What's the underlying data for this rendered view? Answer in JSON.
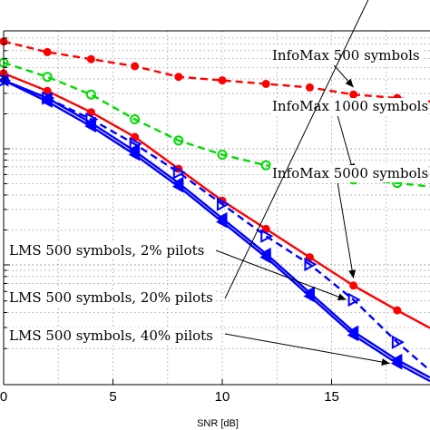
{
  "chart_data": {
    "type": "line",
    "xlabel": "SNR [dB]",
    "ylabel": "",
    "xlim": [
      0,
      19.5
    ],
    "grid": true,
    "x_ticks": [
      0,
      5,
      10,
      15
    ],
    "series": [
      {
        "name": "InfoMax 500 symbols",
        "color": "#ff0000",
        "dash": true,
        "marker": "dot",
        "x": [
          0,
          2,
          4,
          6,
          8,
          10,
          12,
          14,
          16,
          18,
          19.5
        ],
        "y": [
          0.92,
          0.89,
          0.87,
          0.85,
          0.82,
          0.81,
          0.8,
          0.79,
          0.77,
          0.76,
          0.75
        ]
      },
      {
        "name": "InfoMax 1000 symbols",
        "color": "#00dd00",
        "dash": true,
        "marker": "circle",
        "x": [
          0,
          2,
          4,
          6,
          8,
          10,
          12,
          14,
          16,
          18,
          19.5
        ],
        "y": [
          0.86,
          0.82,
          0.77,
          0.7,
          0.64,
          0.6,
          0.57,
          0.55,
          0.53,
          0.52,
          0.51
        ]
      },
      {
        "name": "InfoMax 5000 symbols",
        "color": "#ff0000",
        "dash": false,
        "marker": "dot",
        "x": [
          0,
          2,
          4,
          6,
          8,
          10,
          12,
          14,
          16,
          18,
          19.5
        ],
        "y": [
          0.83,
          0.78,
          0.72,
          0.65,
          0.56,
          0.47,
          0.39,
          0.31,
          0.23,
          0.16,
          0.11
        ]
      },
      {
        "name": "LMS 500 symbols, 2% pilots",
        "color": "#0000ff",
        "dash": true,
        "marker": "triangle-right",
        "x": [
          0,
          2,
          4,
          6,
          8,
          10,
          12,
          14,
          16,
          18,
          19.5
        ],
        "y": [
          0.81,
          0.76,
          0.7,
          0.63,
          0.55,
          0.46,
          0.37,
          0.29,
          0.19,
          0.07,
          -0.01
        ]
      },
      {
        "name": "LMS 500 symbols, 20% pilots",
        "color": "#0000ff",
        "dash": false,
        "marker": "triangle-left",
        "x": [
          0,
          2,
          4,
          6,
          8,
          10,
          12,
          14,
          16,
          18,
          19.5
        ],
        "y": [
          0.81,
          0.76,
          0.69,
          0.61,
          0.52,
          0.42,
          0.32,
          0.21,
          0.1,
          0.02,
          -0.03
        ]
      },
      {
        "name": "LMS 500 symbols, 40% pilots",
        "color": "#0000ff",
        "dash": false,
        "marker": "triangle-left",
        "x": [
          0,
          2,
          4,
          6,
          8,
          10,
          12,
          14,
          16,
          18,
          19.5
        ],
        "y": [
          0.81,
          0.75,
          0.68,
          0.6,
          0.51,
          0.41,
          0.31,
          0.2,
          0.09,
          0.01,
          -0.04
        ]
      }
    ],
    "annotations": [
      {
        "text": "InfoMax 500 symbols",
        "series": 0,
        "point_x": 16
      },
      {
        "text": "InfoMax 1000 symbols",
        "series": 1,
        "point_x": 16
      },
      {
        "text": "InfoMax 5000 symbols",
        "series": 2,
        "point_x": 16
      },
      {
        "text": "LMS 500 symbols, 2% pilots",
        "series": 3,
        "point_x": 16
      },
      {
        "text": "LMS 500 symbols, 20% pilots",
        "series": 4,
        "point_x": 17
      },
      {
        "text": "LMS 500 symbols, 40% pilots",
        "series": 5,
        "point_x": 18
      }
    ]
  }
}
